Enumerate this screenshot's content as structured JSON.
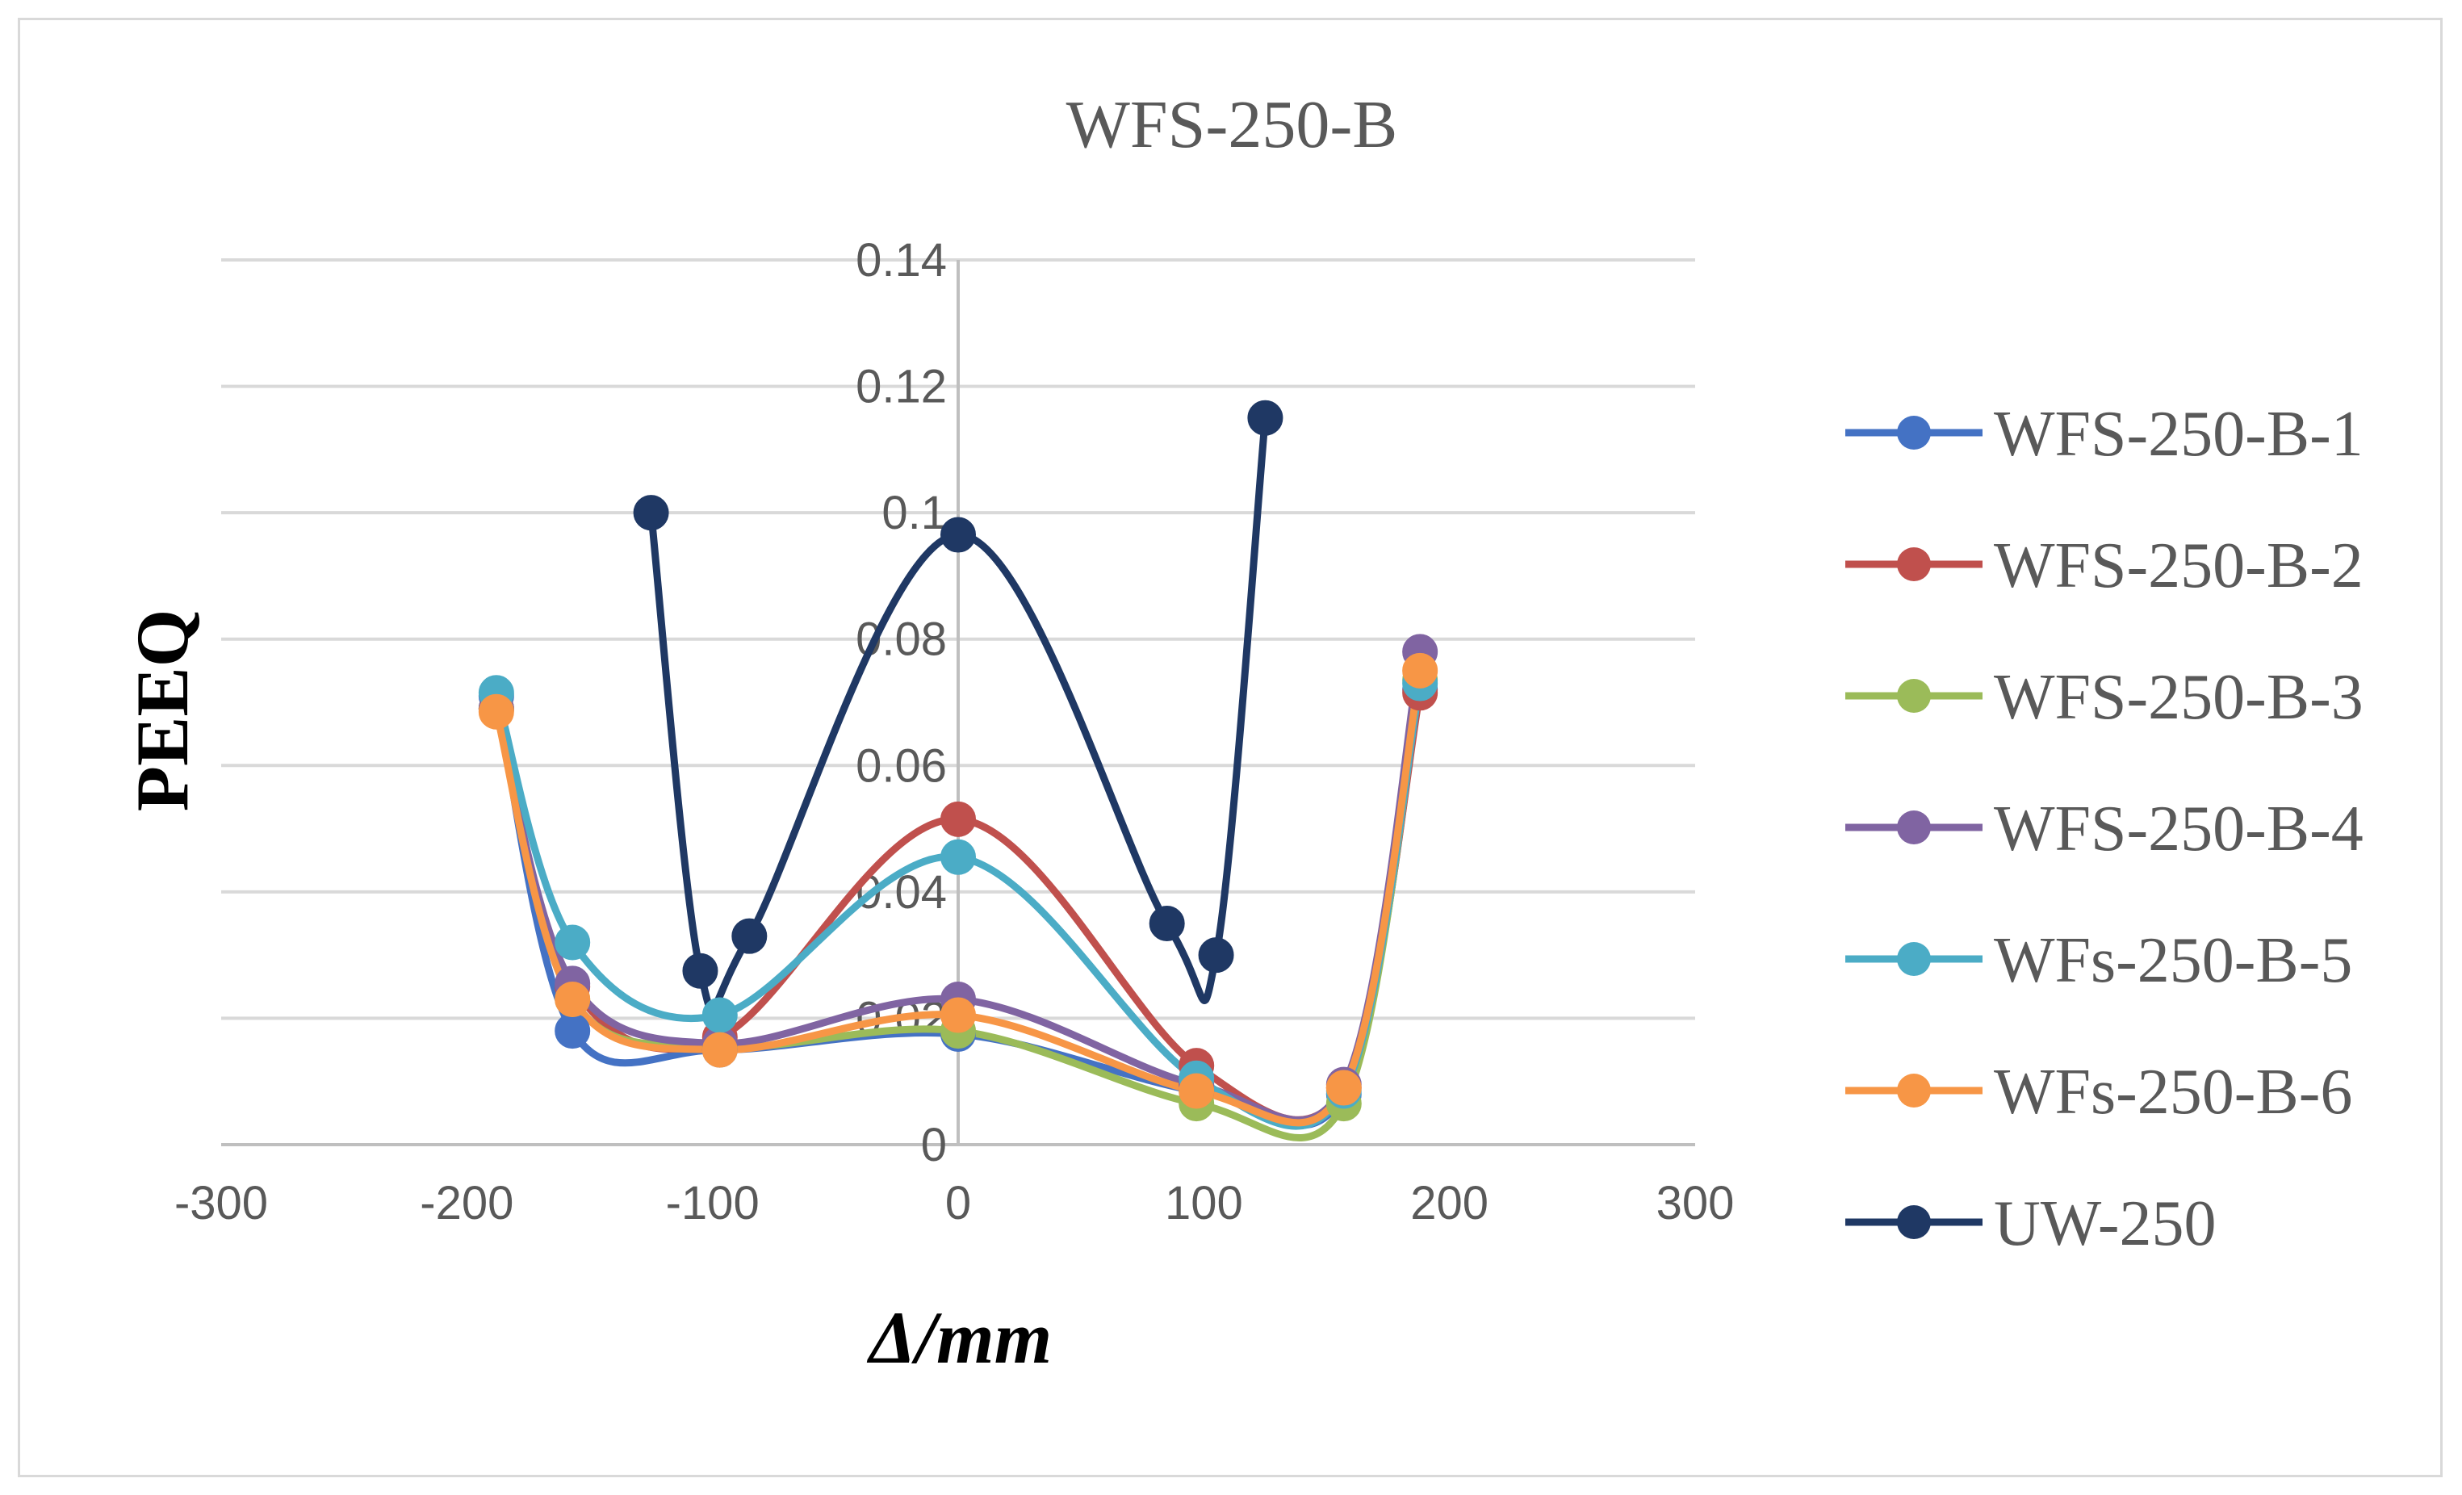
{
  "chart_data": {
    "type": "scatter",
    "title": "WFS-250-B",
    "xlabel": "Δ/mm",
    "ylabel": "PEEQ",
    "xlim": [
      -300,
      300
    ],
    "ylim": [
      0,
      0.14
    ],
    "x_ticks": [
      "-300",
      "-200",
      "-100",
      "0",
      "100",
      "200",
      "300"
    ],
    "y_ticks": [
      "0",
      "0.02",
      "0.04",
      "0.06",
      "0.08",
      "0.1",
      "0.12",
      "0.14"
    ],
    "grid": "horizontal",
    "legend_position": "right",
    "series": [
      {
        "name": "WFS-250-B-1",
        "color": "#4472C4",
        "points": [
          [
            -188,
            0.071
          ],
          [
            -157,
            0.018
          ],
          [
            -97,
            0.015
          ],
          [
            0,
            0.0175
          ],
          [
            97,
            0.0085
          ],
          [
            157,
            0.008
          ],
          [
            188,
            0.072
          ]
        ]
      },
      {
        "name": "WFS-250-B-2",
        "color": "#C0504D",
        "points": [
          [
            -188,
            0.069
          ],
          [
            -157,
            0.025
          ],
          [
            -97,
            0.017
          ],
          [
            0,
            0.0515
          ],
          [
            97,
            0.0125
          ],
          [
            157,
            0.009
          ],
          [
            188,
            0.0715
          ]
        ]
      },
      {
        "name": "WFS-250-B-3",
        "color": "#9BBB59",
        "points": [
          [
            -188,
            0.069
          ],
          [
            -157,
            0.023
          ],
          [
            -97,
            0.0155
          ],
          [
            0,
            0.018
          ],
          [
            97,
            0.0065
          ],
          [
            157,
            0.0065
          ],
          [
            188,
            0.0735
          ]
        ]
      },
      {
        "name": "WFS-250-B-4",
        "color": "#8064A2",
        "points": [
          [
            -188,
            0.069
          ],
          [
            -157,
            0.0255
          ],
          [
            -97,
            0.016
          ],
          [
            0,
            0.023
          ],
          [
            97,
            0.0095
          ],
          [
            157,
            0.0095
          ],
          [
            188,
            0.078
          ]
        ]
      },
      {
        "name": "WFs-250-B-5",
        "color": "#4BACC6",
        "points": [
          [
            -188,
            0.0715
          ],
          [
            -157,
            0.032
          ],
          [
            -97,
            0.0205
          ],
          [
            0,
            0.0455
          ],
          [
            97,
            0.0105
          ],
          [
            157,
            0.0085
          ],
          [
            188,
            0.073
          ]
        ]
      },
      {
        "name": "WFs-250-B-6",
        "color": "#F79646",
        "points": [
          [
            -188,
            0.0685
          ],
          [
            -157,
            0.023
          ],
          [
            -97,
            0.015
          ],
          [
            0,
            0.0205
          ],
          [
            97,
            0.0085
          ],
          [
            157,
            0.009
          ],
          [
            188,
            0.075
          ]
        ]
      },
      {
        "name": "UW-250",
        "color": "#1F3864",
        "points": [
          [
            -125,
            0.1
          ],
          [
            -105,
            0.0275
          ],
          [
            -85,
            0.033
          ],
          [
            0,
            0.0965
          ],
          [
            85,
            0.035
          ],
          [
            105,
            0.03
          ],
          [
            125,
            0.115
          ]
        ]
      }
    ]
  }
}
